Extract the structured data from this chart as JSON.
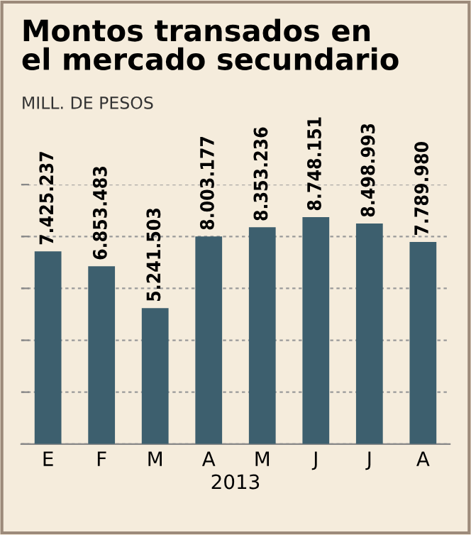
{
  "chart_data": {
    "type": "bar",
    "title": "Montos transados en\nel mercado secundario",
    "ylabel": "MILL. DE PESOS",
    "xlabel": "2013",
    "categories": [
      "E",
      "F",
      "M",
      "A",
      "M",
      "J",
      "J",
      "A"
    ],
    "values": [
      7425237,
      6853483,
      5241503,
      8003177,
      8353236,
      8748151,
      8498993,
      7789980
    ],
    "value_labels": [
      "7.425.237",
      "6.853.483",
      "5.241.503",
      "8.003.177",
      "8.353.236",
      "8.748.151",
      "8.498.993",
      "7.789.980"
    ],
    "color": "#3d5f6e",
    "ylim": [
      0,
      10000000
    ],
    "yticks": [
      {
        "value": 0,
        "label": null
      },
      {
        "value": 2000000,
        "label": null
      },
      {
        "value": 4000000,
        "label": null
      },
      {
        "value": 6000000,
        "label": null
      },
      {
        "value": 8000000,
        "label": null
      },
      {
        "value": 10000000,
        "label": null
      }
    ],
    "tick_labels": "x",
    "grid": "y"
  }
}
